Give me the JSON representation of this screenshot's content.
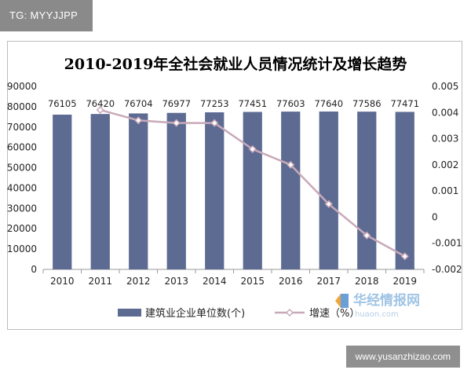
{
  "tag": "TG: MYYJJPP",
  "watermark": {
    "logo_text": "华经情报网",
    "logo_url": "huaon.com",
    "site": "www.yusanzhizao.com"
  },
  "colors": {
    "bar": "#5d6b93",
    "line": "#c9a9b8",
    "marker_stroke": "#c9a9b8"
  },
  "chart_data": {
    "type": "bar",
    "title": "2010-2019年全社会就业人员情况统计及增长趋势",
    "categories": [
      "2010",
      "2011",
      "2012",
      "2013",
      "2014",
      "2015",
      "2016",
      "2017",
      "2018",
      "2019"
    ],
    "series": [
      {
        "name": "建筑业企业单位数(个)",
        "type": "bar",
        "axis": "left",
        "values": [
          76105,
          76420,
          76704,
          76977,
          77253,
          77451,
          77603,
          77640,
          77586,
          77471
        ],
        "labels": [
          "76105",
          "76420",
          "76704",
          "76977",
          "77253",
          "77451",
          "77603",
          "77640",
          "77586",
          "77471"
        ]
      },
      {
        "name": "增速（%）",
        "type": "line",
        "axis": "right",
        "values": [
          null,
          0.0041,
          0.0037,
          0.0036,
          0.0036,
          0.0026,
          0.002,
          0.0005,
          -0.0007,
          -0.0015
        ]
      }
    ],
    "ylim_left": [
      0,
      90000
    ],
    "yticks_left": [
      "0",
      "10000",
      "20000",
      "30000",
      "40000",
      "50000",
      "60000",
      "70000",
      "80000",
      "90000"
    ],
    "ylim_right": [
      -0.002,
      0.005
    ],
    "yticks_right": [
      "-0.002",
      "-0.001",
      "0",
      "0.001",
      "0.002",
      "0.003",
      "0.004",
      "0.005"
    ],
    "legend": [
      "建筑业企业单位数(个)",
      "增速（%）"
    ],
    "legend_position": "bottom",
    "grid": false
  }
}
